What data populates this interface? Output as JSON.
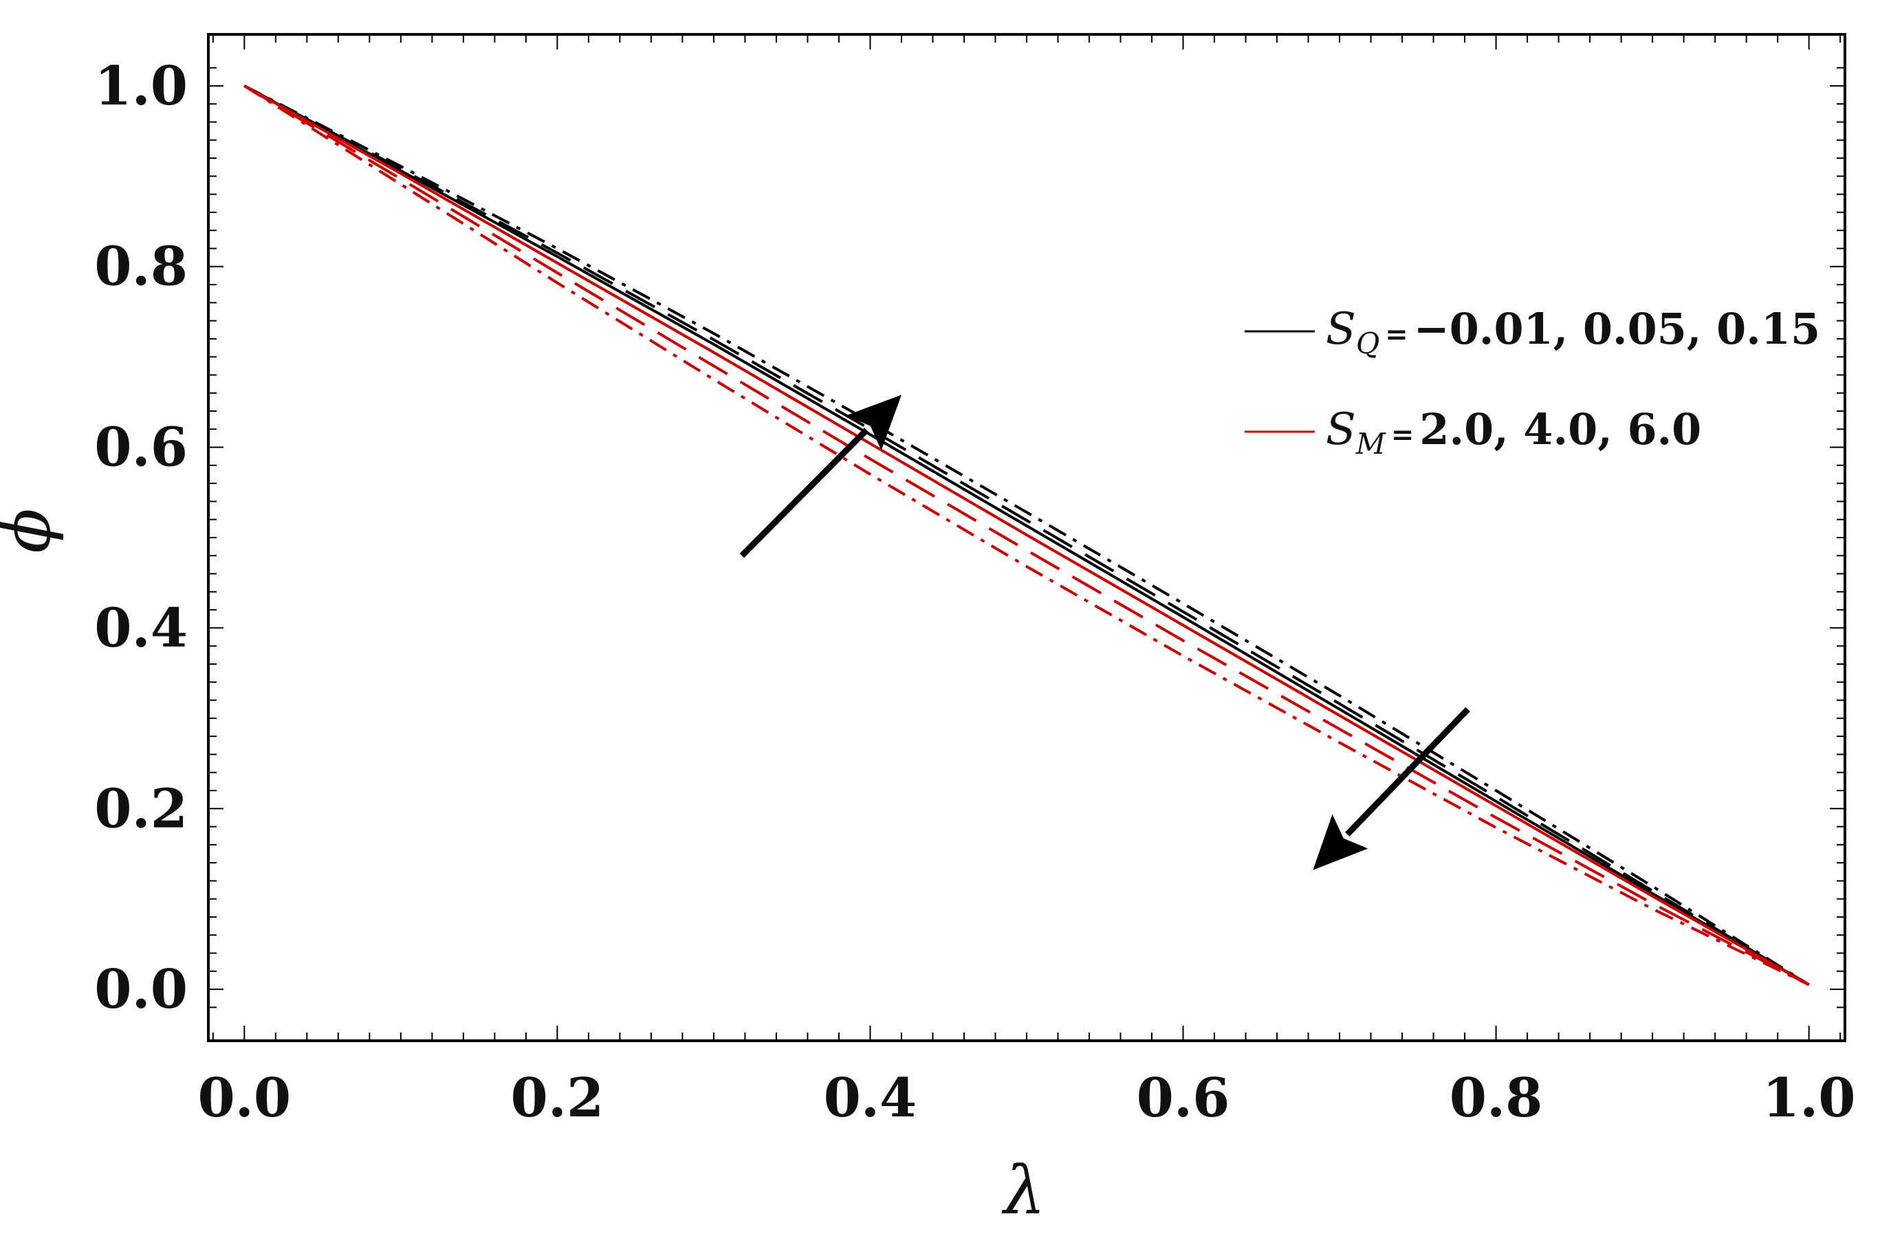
{
  "chart_data": {
    "type": "line",
    "title": "",
    "xlabel": "λ",
    "ylabel": "ϕ",
    "xlim": [
      -0.023,
      1.023
    ],
    "ylim": [
      -0.057,
      1.057
    ],
    "grid": false,
    "x_ticks": [
      0.0,
      0.2,
      0.4,
      0.6,
      0.8,
      1.0
    ],
    "x_tick_labels": [
      "0.0",
      "0.2",
      "0.4",
      "0.6",
      "0.8",
      "1.0"
    ],
    "y_ticks": [
      0.0,
      0.2,
      0.4,
      0.6,
      0.8,
      1.0
    ],
    "y_tick_labels": [
      "0.0",
      "0.2",
      "0.4",
      "0.6",
      "0.8",
      "1.0"
    ],
    "legend_position": "right",
    "legend": [
      {
        "symbol": "S",
        "subscript": "Q",
        "equals": "=",
        "values": "−0.01, 0.05, 0.15",
        "color": "#000000"
      },
      {
        "symbol": "S",
        "subscript": "M",
        "equals": "=",
        "values": "2.0, 4.0, 6.0",
        "color": "#cc0000"
      }
    ],
    "series": [
      {
        "name": "S_Q = −0.01",
        "color": "#000000",
        "dash": "solid",
        "x": [
          0,
          0.1,
          0.2,
          0.3,
          0.4,
          0.5,
          0.6,
          0.7,
          0.8,
          0.9,
          1.0
        ],
        "y": [
          1.0,
          0.906,
          0.811,
          0.714,
          0.614,
          0.513,
          0.412,
          0.31,
          0.208,
          0.106,
          0.005
        ]
      },
      {
        "name": "S_Q = 0.05",
        "color": "#000000",
        "dash": "dashed",
        "x": [
          0,
          0.1,
          0.2,
          0.3,
          0.4,
          0.5,
          0.6,
          0.7,
          0.8,
          0.9,
          1.0
        ],
        "y": [
          1.0,
          0.908,
          0.815,
          0.719,
          0.62,
          0.519,
          0.418,
          0.316,
          0.213,
          0.109,
          0.005
        ]
      },
      {
        "name": "S_Q = 0.15",
        "color": "#000000",
        "dash": "dashdot",
        "x": [
          0,
          0.1,
          0.2,
          0.3,
          0.4,
          0.5,
          0.6,
          0.7,
          0.8,
          0.9,
          1.0
        ],
        "y": [
          1.0,
          0.911,
          0.82,
          0.726,
          0.628,
          0.528,
          0.427,
          0.325,
          0.22,
          0.114,
          0.005
        ]
      },
      {
        "name": "S_M = 2.0",
        "color": "#cc0000",
        "dash": "solid",
        "x": [
          0,
          0.1,
          0.2,
          0.3,
          0.4,
          0.5,
          0.6,
          0.7,
          0.8,
          0.9,
          1.0
        ],
        "y": [
          1.0,
          0.903,
          0.804,
          0.705,
          0.604,
          0.503,
          0.403,
          0.303,
          0.203,
          0.103,
          0.005
        ]
      },
      {
        "name": "S_M = 4.0",
        "color": "#cc0000",
        "dash": "dashed",
        "x": [
          0,
          0.1,
          0.2,
          0.3,
          0.4,
          0.5,
          0.6,
          0.7,
          0.8,
          0.9,
          1.0
        ],
        "y": [
          1.0,
          0.897,
          0.793,
          0.69,
          0.587,
          0.486,
          0.386,
          0.288,
          0.19,
          0.095,
          0.005
        ]
      },
      {
        "name": "S_M = 6.0",
        "color": "#cc0000",
        "dash": "dashdot",
        "x": [
          0,
          0.1,
          0.2,
          0.3,
          0.4,
          0.5,
          0.6,
          0.7,
          0.8,
          0.9,
          1.0
        ],
        "y": [
          1.0,
          0.891,
          0.782,
          0.675,
          0.57,
          0.468,
          0.369,
          0.273,
          0.179,
          0.089,
          0.005
        ]
      }
    ],
    "annotations": [
      {
        "type": "arrow",
        "meaning": "increasing S_Q",
        "from": [
          0.318,
          0.48
        ],
        "to": [
          0.42,
          0.658
        ]
      },
      {
        "type": "arrow",
        "meaning": "increasing S_M",
        "from": [
          0.782,
          0.31
        ],
        "to": [
          0.683,
          0.132
        ]
      }
    ]
  }
}
